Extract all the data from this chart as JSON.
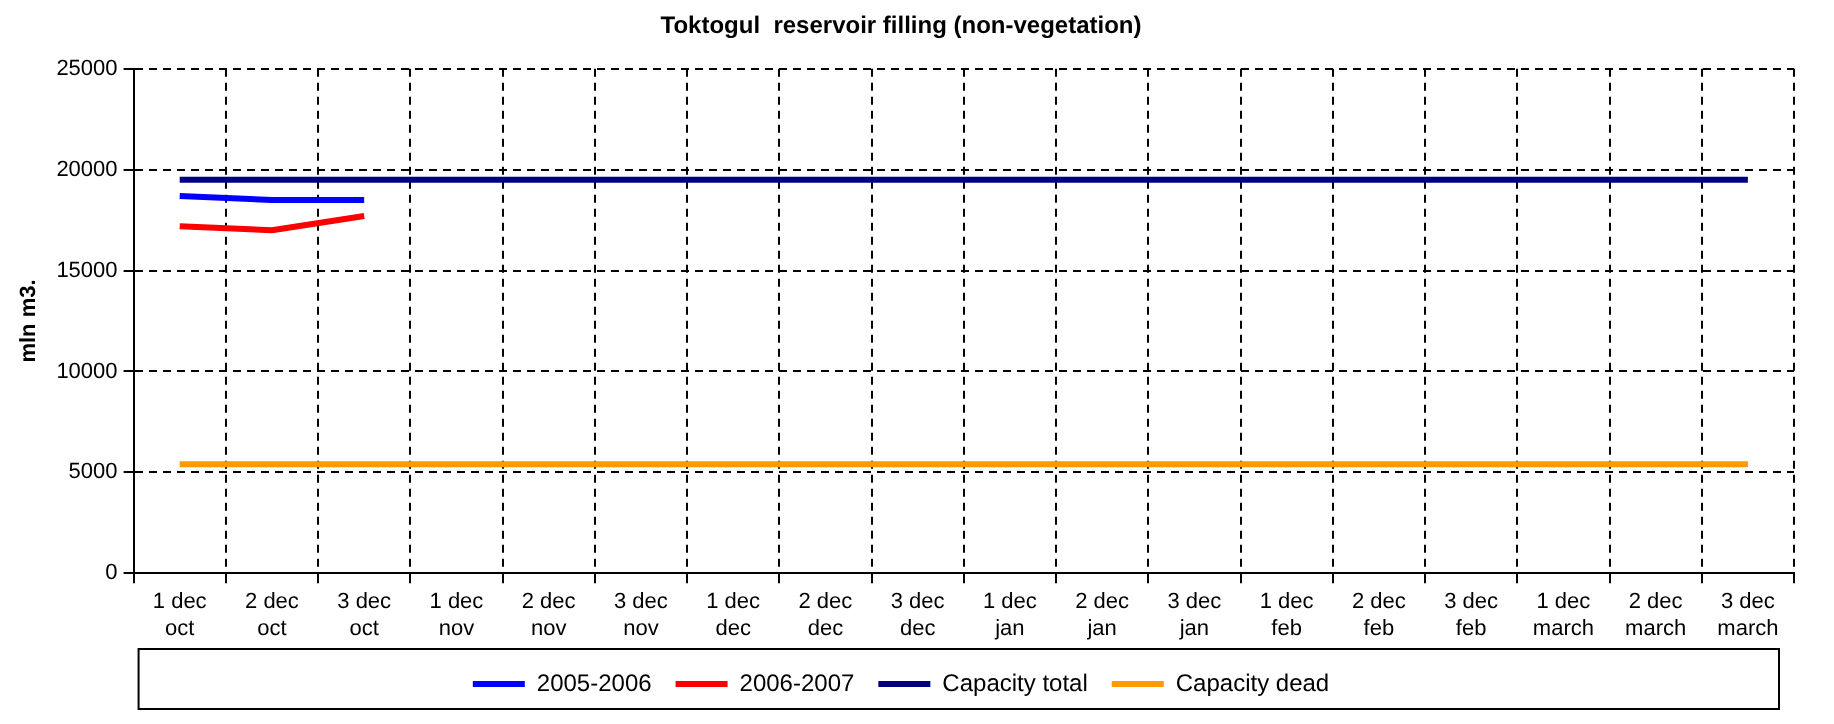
{
  "chart_data": {
    "type": "line",
    "title": "Toktogul  reservoir filling (non-vegetation)",
    "ylabel": "mln m3.",
    "categories": [
      "1 dec\noct",
      "2 dec\noct",
      "3 dec\noct",
      "1 dec\nnov",
      "2 dec\nnov",
      "3 dec\nnov",
      "1 dec\ndec",
      "2 dec\ndec",
      "3 dec\ndec",
      "1 dec\njan",
      "2 dec\njan",
      "3 dec\njan",
      "1 dec\nfeb",
      "2 dec\nfeb",
      "3 dec\nfeb",
      "1 dec\nmarch",
      "2 dec\nmarch",
      "3 dec\nmarch"
    ],
    "series": [
      {
        "name": "2005-2006",
        "color": "#0000ff",
        "values": [
          18700,
          18500,
          18500,
          null,
          null,
          null,
          null,
          null,
          null,
          null,
          null,
          null,
          null,
          null,
          null,
          null,
          null,
          null
        ]
      },
      {
        "name": "2006-2007",
        "color": "#ff0000",
        "values": [
          17200,
          17000,
          17700,
          null,
          null,
          null,
          null,
          null,
          null,
          null,
          null,
          null,
          null,
          null,
          null,
          null,
          null,
          null
        ]
      },
      {
        "name": "Capacity total",
        "color": "#000080",
        "values": [
          19500,
          19500,
          19500,
          19500,
          19500,
          19500,
          19500,
          19500,
          19500,
          19500,
          19500,
          19500,
          19500,
          19500,
          19500,
          19500,
          19500,
          19500
        ]
      },
      {
        "name": "Capacity dead",
        "color": "#ff9900",
        "values": [
          5400,
          5400,
          5400,
          5400,
          5400,
          5400,
          5400,
          5400,
          5400,
          5400,
          5400,
          5400,
          5400,
          5400,
          5400,
          5400,
          5400,
          5400
        ]
      }
    ],
    "ylim": [
      0,
      25000
    ],
    "yticks": [
      0,
      5000,
      10000,
      15000,
      20000,
      25000
    ],
    "grid": true,
    "legend": "bottom",
    "marker": "none",
    "line_style": "solid"
  }
}
